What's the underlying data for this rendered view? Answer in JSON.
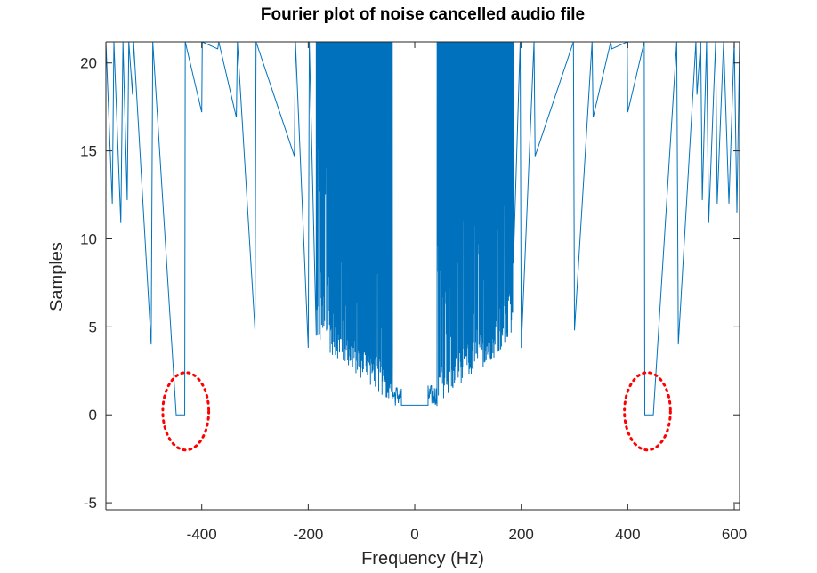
{
  "chart_data": {
    "type": "line",
    "title": "Fourier plot of noise cancelled audio file",
    "xlabel": "Frequency (Hz)",
    "ylabel": "Samples",
    "xlim": [
      -580,
      610
    ],
    "ylim": [
      -5.4,
      21.2
    ],
    "xticks": [
      -400,
      -200,
      0,
      200,
      400,
      600
    ],
    "yticks": [
      -5,
      0,
      5,
      10,
      15,
      20
    ],
    "grid": false,
    "series": [
      {
        "color": "#0072BD",
        "description_points": {
          "x": [
            -580,
            -568,
            -565,
            -552,
            -548,
            -540,
            -537,
            -530,
            -528,
            -495,
            -492,
            -448,
            -447,
            -432,
            -431,
            -400,
            -399,
            -370,
            -368,
            -335,
            -333,
            -300,
            -298,
            -226,
            -224,
            -200,
            -198,
            -185,
            -180,
            -170,
            -160,
            -150,
            -140,
            -130,
            -120,
            -110,
            -100,
            -90,
            -80,
            -70,
            -60,
            -50,
            -42,
            -35,
            -30,
            -25,
            -20,
            0,
            20,
            25,
            30,
            35,
            42,
            50,
            60,
            70,
            80,
            90,
            100,
            110,
            120,
            130,
            140,
            150,
            160,
            170,
            180,
            185,
            198,
            200,
            224,
            226,
            298,
            300,
            333,
            335,
            368,
            370,
            399,
            400,
            431,
            432,
            447,
            448,
            492,
            495,
            528,
            530,
            537,
            540,
            548,
            552,
            565,
            568,
            580,
            590,
            600,
            605,
            610
          ],
          "y": [
            21.2,
            12.0,
            21.2,
            10.9,
            21.2,
            12.2,
            21.2,
            18.2,
            21.2,
            4.0,
            21.2,
            0.0,
            0.0,
            0.0,
            21.2,
            17.2,
            21.2,
            20.8,
            21.2,
            16.9,
            21.2,
            4.8,
            21.2,
            14.7,
            21.2,
            3.8,
            21.2,
            4.5,
            2.5,
            4.0,
            2.5,
            3.0,
            2.2,
            3.5,
            2.0,
            3.0,
            1.5,
            2.5,
            1.2,
            2.0,
            1.0,
            0.9,
            0.6,
            0.6,
            0.7,
            0.5,
            0.55,
            0.55,
            0.55,
            0.5,
            0.7,
            0.6,
            0.6,
            0.9,
            1.0,
            2.0,
            1.2,
            2.5,
            1.5,
            3.0,
            2.0,
            3.5,
            2.2,
            3.0,
            2.5,
            4.0,
            2.5,
            4.5,
            21.2,
            3.8,
            21.2,
            14.7,
            21.2,
            4.8,
            21.2,
            16.9,
            21.2,
            20.8,
            21.2,
            17.2,
            21.2,
            0.0,
            0.0,
            0.0,
            21.2,
            4.0,
            21.2,
            18.2,
            21.2,
            12.2,
            21.2,
            10.9,
            21.2,
            12.0,
            21.2,
            12.0,
            21.2,
            11.5,
            21.2
          ]
        }
      }
    ],
    "annotations": [
      {
        "type": "dotted-circle",
        "color": "#ff0000",
        "center": [
          -430,
          0.2
        ],
        "radius_x_units": 72,
        "radius_y_units": 2.2
      },
      {
        "type": "dotted-circle",
        "color": "#ff0000",
        "center": [
          437,
          0.2
        ],
        "radius_x_units": 72,
        "radius_y_units": 2.2
      }
    ]
  }
}
